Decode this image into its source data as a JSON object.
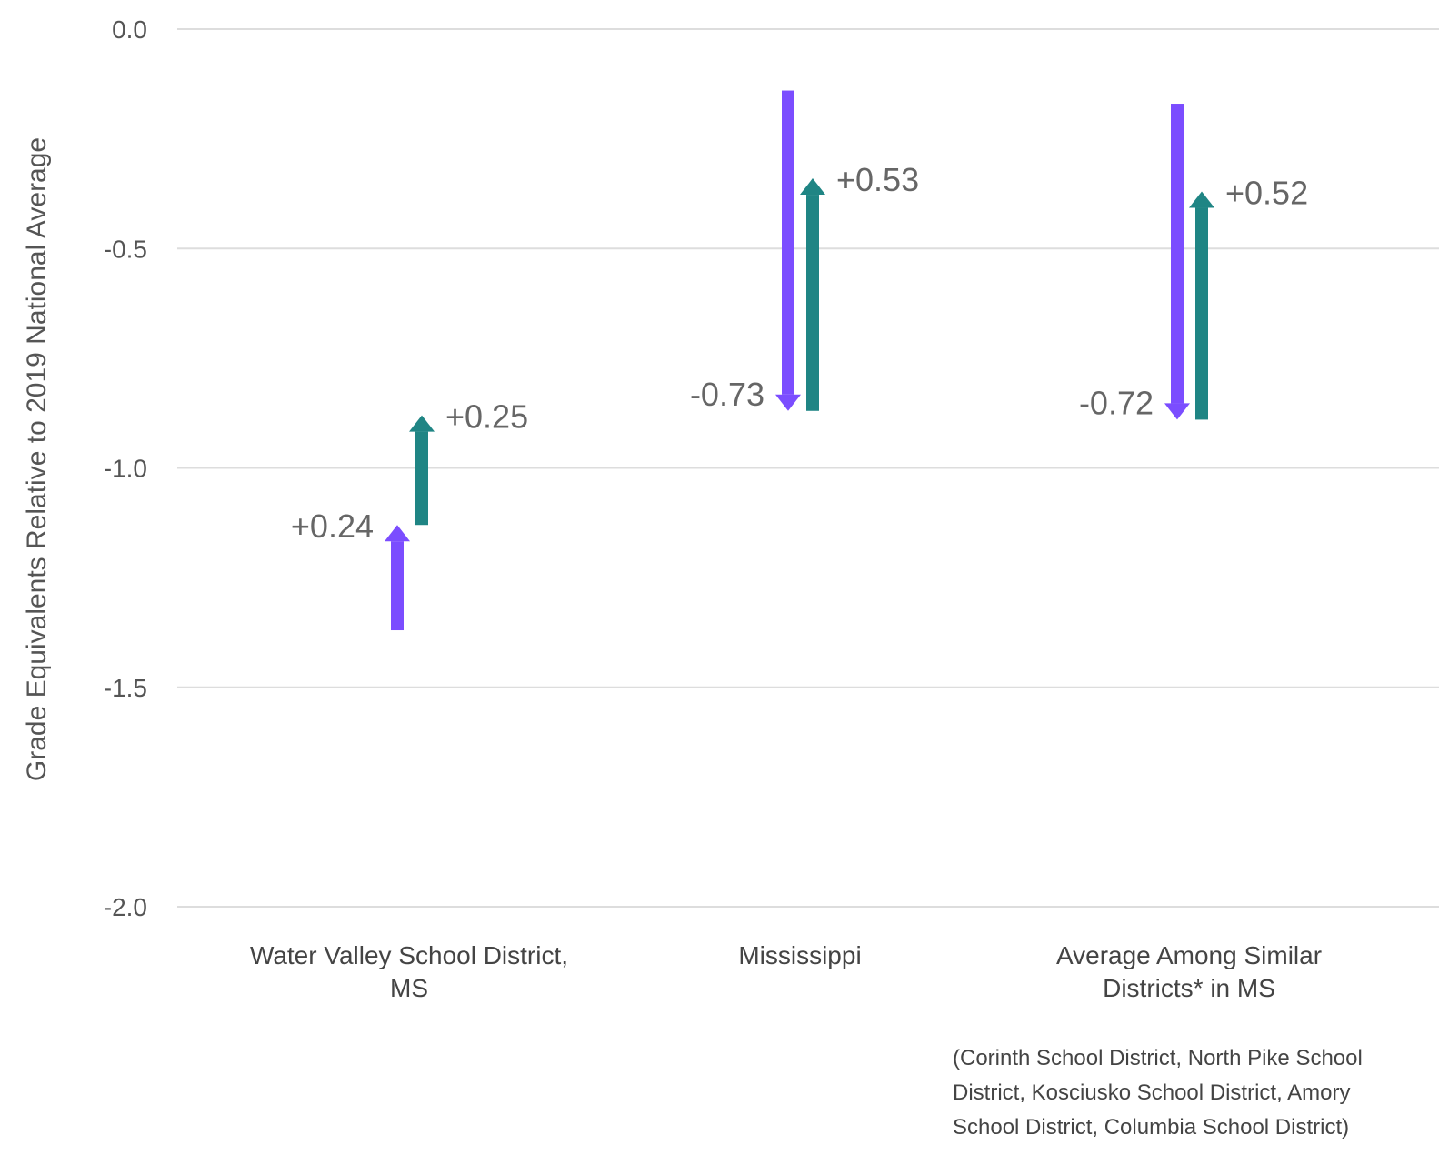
{
  "chart_data": {
    "type": "arrow",
    "ylabel": "Grade Equivalents Relative to 2019 National Average",
    "ylim": [
      -2.0,
      0.0
    ],
    "yticks": [
      "0.0",
      "-0.5",
      "-1.0",
      "-1.5",
      "-2.0"
    ],
    "ytick_values": [
      0.0,
      -0.5,
      -1.0,
      -1.5,
      -2.0
    ],
    "grid": true,
    "categories": [
      {
        "label_lines": [
          "Water Valley School District,",
          "MS"
        ],
        "arrows": [
          {
            "series": "purple",
            "from": -1.37,
            "to": -1.13,
            "label": "+0.24"
          },
          {
            "series": "teal",
            "from": -1.13,
            "to": -0.88,
            "label": "+0.25"
          }
        ]
      },
      {
        "label_lines": [
          "Mississippi"
        ],
        "arrows": [
          {
            "series": "purple",
            "from": -0.14,
            "to": -0.87,
            "label": "-0.73"
          },
          {
            "series": "teal",
            "from": -0.87,
            "to": -0.34,
            "label": "+0.53"
          }
        ]
      },
      {
        "label_lines": [
          "Average Among Similar",
          "Districts* in MS"
        ],
        "arrows": [
          {
            "series": "purple",
            "from": -0.17,
            "to": -0.89,
            "label": "-0.72"
          },
          {
            "series": "teal",
            "from": -0.89,
            "to": -0.37,
            "label": "+0.52"
          }
        ]
      }
    ],
    "colors": {
      "purple": "#7b4dff",
      "teal": "#1f8584",
      "grid": "#dddddd"
    }
  },
  "footnote_lines": [
    "(Corinth School District, North Pike School",
    "District, Kosciusko School District, Amory",
    "School District, Columbia School District)"
  ]
}
